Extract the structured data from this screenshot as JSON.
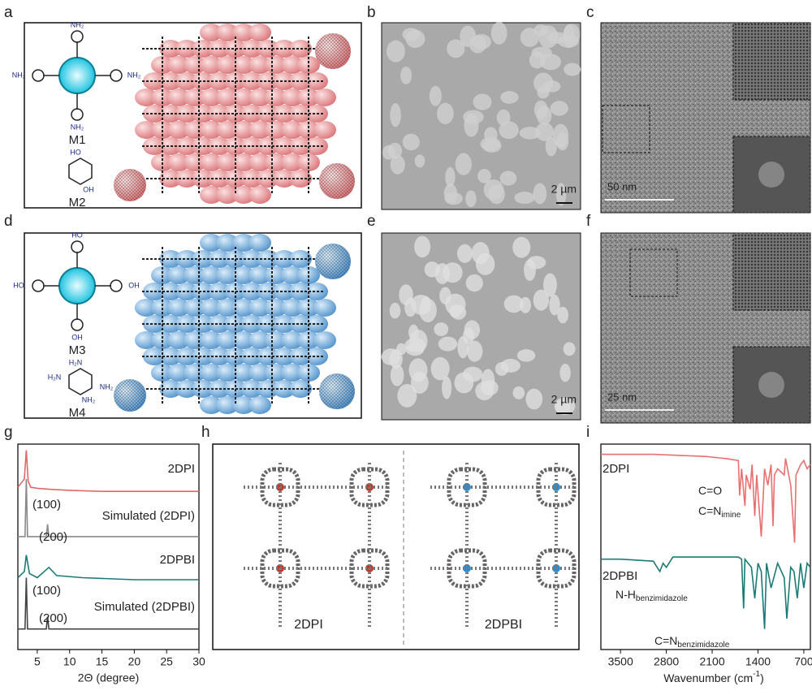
{
  "panels": {
    "a": {
      "letter": "a",
      "molecules": [
        "M1",
        "M2"
      ],
      "atoms_m1": [
        "NH₂",
        "NH₂",
        "NH₂",
        "NH₂"
      ],
      "atoms_m2": [
        "HO",
        "OH"
      ]
    },
    "b": {
      "letter": "b",
      "scale": "2 µm"
    },
    "c": {
      "letter": "c",
      "scale": "50 nm"
    },
    "d": {
      "letter": "d",
      "molecules": [
        "M3",
        "M4"
      ],
      "atoms_m3": [
        "HO",
        "OH",
        "OH",
        "HO"
      ],
      "atoms_m4": [
        "H₂N",
        "NH₂",
        "H₂N",
        "NH₂"
      ]
    },
    "e": {
      "letter": "e",
      "scale": "2 µm"
    },
    "f": {
      "letter": "f",
      "scale": "25 nm"
    },
    "g": {
      "letter": "g"
    },
    "h": {
      "letter": "h",
      "left": "2DPI",
      "right": "2DPBI"
    },
    "i": {
      "letter": "i"
    }
  },
  "chart_data": [
    {
      "type": "line",
      "xlabel": "2Θ (degree)",
      "xlim": [
        2,
        30
      ],
      "xticks": [
        5,
        10,
        15,
        20,
        25,
        30
      ],
      "ylim": [
        0,
        100
      ],
      "annotations": [
        "(100)",
        "(200)",
        "(100)",
        "(200)"
      ],
      "series": [
        {
          "name": "2DPI",
          "color": "#e06868",
          "x": [
            2,
            3,
            3.3,
            3.6,
            4,
            5,
            7,
            10,
            15,
            20,
            25,
            30
          ],
          "values": [
            79,
            83,
            97,
            82,
            79,
            78.5,
            78,
            77.5,
            77,
            77,
            77,
            77
          ]
        },
        {
          "name": "Simulated (2DPI)",
          "color": "#8a8a8a",
          "x": [
            2,
            3.1,
            3.3,
            3.5,
            6.4,
            6.6,
            6.8,
            30
          ],
          "values": [
            55,
            55,
            83,
            55,
            55,
            61,
            55,
            55
          ]
        },
        {
          "name": "2DPBI",
          "color": "#1b7a76",
          "x": [
            2,
            3,
            3.3,
            3.8,
            5,
            6.8,
            8,
            12,
            20,
            30
          ],
          "values": [
            35,
            38,
            46,
            37,
            35,
            40,
            36,
            35,
            34,
            34
          ]
        },
        {
          "name": "Simulated (2DPBI)",
          "color": "#444444",
          "x": [
            2,
            3.1,
            3.3,
            3.5,
            6.4,
            6.6,
            6.8,
            30
          ],
          "values": [
            10,
            10,
            35,
            10,
            10,
            16,
            10,
            10
          ]
        }
      ]
    },
    {
      "type": "line",
      "xlabel": {
        "text": "Wavenumber (cm",
        "sup": "-1",
        "end": ")"
      },
      "xlim": [
        3800,
        600
      ],
      "xticks": [
        3500,
        2800,
        2100,
        1400,
        700
      ],
      "ylim": [
        0,
        100
      ],
      "annotations": [
        {
          "text": "C=O"
        },
        {
          "text": "C=N",
          "sub": "imine"
        },
        {
          "text": "N-H",
          "sub": "benzimidazole"
        },
        {
          "text": "C=N",
          "sub": "benzimidazole"
        }
      ],
      "series": [
        {
          "name": "2DPI",
          "color": "#e87070",
          "x": [
            3800,
            3000,
            2200,
            1900,
            1700,
            1680,
            1650,
            1600,
            1580,
            1520,
            1490,
            1450,
            1420,
            1350,
            1300,
            1250,
            1200,
            1170,
            1150,
            1100,
            1000,
            980,
            900,
            840,
            820,
            750,
            700,
            650,
            600
          ],
          "values": [
            95,
            95,
            94,
            93,
            92,
            75,
            88,
            70,
            85,
            78,
            90,
            65,
            85,
            55,
            88,
            80,
            90,
            60,
            85,
            88,
            85,
            93,
            80,
            52,
            85,
            90,
            92,
            88,
            90
          ]
        },
        {
          "name": "2DPBI",
          "color": "#1b7a76",
          "x": [
            3800,
            3500,
            3000,
            2900,
            2850,
            2800,
            2700,
            2400,
            2000,
            1700,
            1650,
            1620,
            1600,
            1500,
            1450,
            1400,
            1350,
            1300,
            1270,
            1200,
            1100,
            1000,
            960,
            900,
            850,
            800,
            750,
            700,
            650,
            600
          ],
          "values": [
            44,
            44,
            43,
            38,
            42,
            40,
            45,
            45,
            45,
            45,
            44,
            20,
            44,
            40,
            25,
            42,
            38,
            10,
            42,
            30,
            42,
            35,
            15,
            40,
            38,
            25,
            42,
            30,
            42,
            40
          ]
        }
      ]
    }
  ]
}
